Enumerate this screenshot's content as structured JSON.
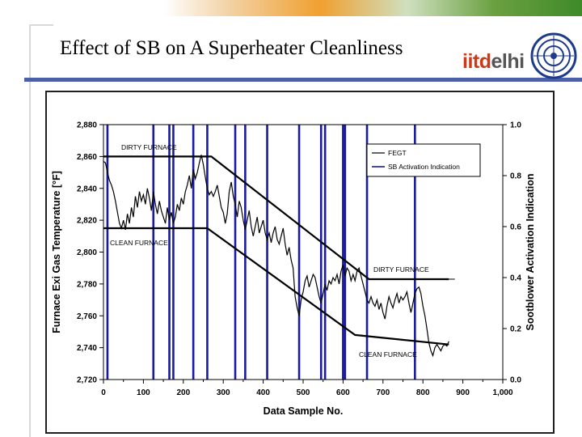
{
  "slide": {
    "title": "Effect of SB on A Superheater Cleanliness",
    "logo_text_1": "iitd",
    "logo_text_2": "elhi"
  },
  "colors": {
    "accent_blue": "#4a5fa8",
    "series_black": "#000000",
    "sb_blue": "#1a1aa0"
  },
  "chart_data": {
    "type": "line",
    "xlabel": "Data Sample No.",
    "ylabel": "Furnace Exi Gas Temperature [°F]",
    "ylabel2": "Sootblower Activation Indication",
    "xlim": [
      0,
      1000
    ],
    "ylim": [
      2720,
      2880
    ],
    "y2lim": [
      0.0,
      1.0
    ],
    "x_ticks": [
      "0",
      "100",
      "200",
      "300",
      "400",
      "500",
      "600",
      "700",
      "800",
      "900",
      "1,000"
    ],
    "y_ticks": [
      "2,720",
      "2,740",
      "2,760",
      "2,780",
      "2,800",
      "2,820",
      "2,840",
      "2,860",
      "2,880"
    ],
    "y2_ticks": [
      "0.0",
      "0.2",
      "0.4",
      "0.6",
      "0.8",
      "1.0"
    ],
    "legend": {
      "position": "top-right",
      "entries": [
        "FEGT",
        "SB Activation Indication"
      ]
    },
    "series": [
      {
        "name": "FEGT",
        "x": [
          0,
          5,
          10,
          15,
          20,
          25,
          30,
          35,
          40,
          45,
          50,
          55,
          60,
          65,
          70,
          75,
          80,
          85,
          90,
          95,
          100,
          105,
          110,
          115,
          120,
          125,
          130,
          135,
          140,
          145,
          150,
          155,
          160,
          165,
          170,
          175,
          180,
          185,
          190,
          195,
          200,
          205,
          210,
          215,
          220,
          225,
          230,
          235,
          240,
          245,
          250,
          255,
          260,
          265,
          270,
          275,
          280,
          285,
          290,
          295,
          300,
          305,
          310,
          315,
          320,
          325,
          330,
          335,
          340,
          345,
          350,
          355,
          360,
          365,
          370,
          375,
          380,
          385,
          390,
          395,
          400,
          405,
          410,
          415,
          420,
          425,
          430,
          435,
          440,
          445,
          450,
          455,
          460,
          465,
          470,
          475,
          480,
          485,
          490,
          495,
          500,
          505,
          510,
          515,
          520,
          525,
          530,
          535,
          540,
          545,
          550,
          555,
          560,
          565,
          570,
          575,
          580,
          585,
          590,
          595,
          600,
          605,
          610,
          615,
          620,
          625,
          630,
          635,
          640,
          645,
          650,
          655,
          660,
          665,
          670,
          675,
          680,
          685,
          690,
          695,
          700,
          705,
          710,
          715,
          720,
          725,
          730,
          735,
          740,
          745,
          750,
          755,
          760,
          765,
          770,
          775,
          780,
          785,
          790,
          795,
          800,
          805,
          810,
          815,
          820,
          825,
          830,
          835,
          840,
          845,
          850,
          855,
          860,
          865
        ],
        "y": [
          2857,
          2856,
          2850,
          2845,
          2842,
          2838,
          2832,
          2825,
          2818,
          2815,
          2820,
          2814,
          2824,
          2818,
          2828,
          2822,
          2835,
          2828,
          2838,
          2832,
          2836,
          2830,
          2840,
          2834,
          2826,
          2838,
          2830,
          2824,
          2832,
          2826,
          2822,
          2818,
          2828,
          2820,
          2825,
          2818,
          2822,
          2830,
          2826,
          2834,
          2830,
          2838,
          2842,
          2848,
          2840,
          2852,
          2846,
          2850,
          2856,
          2861,
          2855,
          2847,
          2840,
          2836,
          2838,
          2835,
          2838,
          2842,
          2835,
          2828,
          2825,
          2818,
          2824,
          2838,
          2844,
          2835,
          2830,
          2822,
          2832,
          2828,
          2820,
          2814,
          2820,
          2826,
          2816,
          2810,
          2816,
          2822,
          2812,
          2816,
          2820,
          2812,
          2808,
          2812,
          2806,
          2812,
          2816,
          2808,
          2805,
          2810,
          2815,
          2805,
          2798,
          2803,
          2795,
          2790,
          2772,
          2765,
          2760,
          2770,
          2775,
          2782,
          2785,
          2778,
          2782,
          2786,
          2784,
          2778,
          2772,
          2768,
          2774,
          2780,
          2776,
          2782,
          2780,
          2784,
          2782,
          2786,
          2780,
          2788,
          2792,
          2785,
          2790,
          2788,
          2782,
          2786,
          2782,
          2788,
          2790,
          2785,
          2780,
          2775,
          2770,
          2768,
          2772,
          2768,
          2766,
          2770,
          2764,
          2768,
          2762,
          2758,
          2766,
          2772,
          2768,
          2765,
          2770,
          2774,
          2768,
          2772,
          2770,
          2772,
          2775,
          2768,
          2762,
          2768,
          2774,
          2777,
          2778,
          2774,
          2766,
          2760,
          2752,
          2743,
          2738,
          2735,
          2740,
          2742,
          2740,
          2738,
          2741,
          2742,
          2741,
          2744
        ]
      },
      {
        "name": "SB Activation Indication",
        "pulses_x": [
          10,
          125,
          165,
          175,
          225,
          260,
          330,
          355,
          410,
          490,
          545,
          555,
          600,
          605,
          660,
          780
        ]
      }
    ],
    "envelopes": [
      {
        "label": "DIRTY FURNACE",
        "points": [
          [
            0,
            2860
          ],
          [
            270,
            2860
          ],
          [
            665,
            2783
          ],
          [
            865,
            2783
          ]
        ]
      },
      {
        "label": "CLEAN FURNACE",
        "points": [
          [
            0,
            2815
          ],
          [
            260,
            2815
          ],
          [
            630,
            2748
          ],
          [
            865,
            2742
          ]
        ]
      }
    ],
    "annotations": [
      "DIRTY FURNACE",
      "CLEAN FURNACE",
      "DIRTY FURNACE",
      "CLEAN FURNACE"
    ]
  }
}
